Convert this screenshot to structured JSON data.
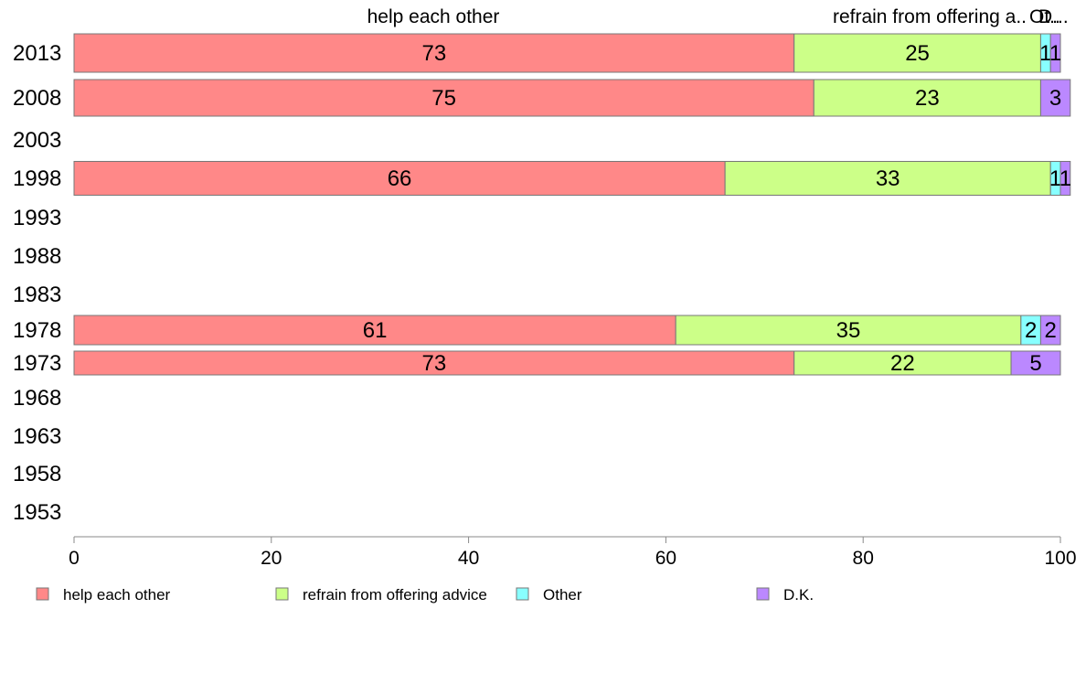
{
  "chart_data": {
    "type": "bar",
    "orientation": "horizontal",
    "stacked": true,
    "categories": [
      "2013",
      "2008",
      "2003",
      "1998",
      "1993",
      "1988",
      "1983",
      "1978",
      "1973",
      "1968",
      "1963",
      "1958",
      "1953"
    ],
    "series": [
      {
        "name": "help each other",
        "color": "#ff8888",
        "values": [
          73,
          75,
          null,
          66,
          null,
          null,
          null,
          61,
          73,
          null,
          null,
          null,
          null
        ]
      },
      {
        "name": "refrain from offering advice",
        "color": "#ccff88",
        "values": [
          25,
          23,
          null,
          33,
          null,
          null,
          null,
          35,
          22,
          null,
          null,
          null,
          null
        ]
      },
      {
        "name": "Other",
        "color": "#88ffff",
        "values": [
          1,
          0,
          null,
          1,
          null,
          null,
          null,
          2,
          0,
          null,
          null,
          null,
          null
        ]
      },
      {
        "name": "D.K.",
        "color": "#bb88ff",
        "values": [
          1,
          3,
          null,
          1,
          null,
          null,
          null,
          2,
          5,
          null,
          null,
          null,
          null
        ]
      }
    ],
    "top_labels": [
      "help each other",
      "refrain from offering a..",
      "Ot..",
      "D..."
    ],
    "xlim": [
      0,
      100
    ],
    "xticks": [
      0,
      20,
      40,
      60,
      80,
      100
    ],
    "grid": false,
    "legend_position": "bottom"
  }
}
